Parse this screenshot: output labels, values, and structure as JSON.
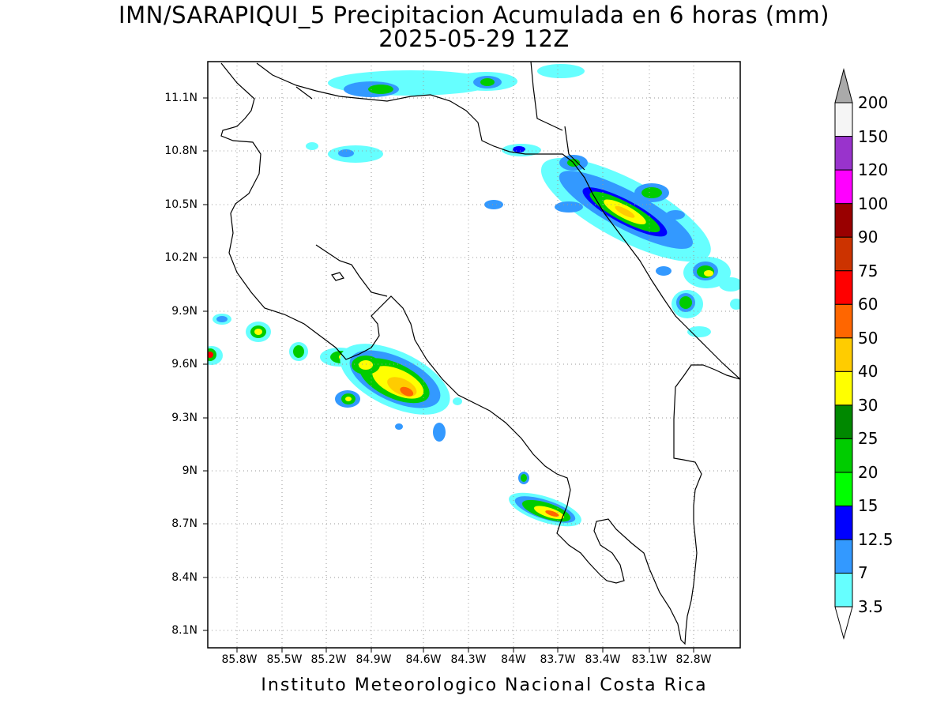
{
  "title": {
    "line1": "IMN/SARAPIQUI_5 Precipitacion Acumulada en 6 horas (mm)",
    "line2": "2025-05-29 12Z"
  },
  "footer": "Instituto Meteorologico Nacional Costa Rica",
  "axes": {
    "lat_labels": [
      "11.1N",
      "10.8N",
      "10.5N",
      "10.2N",
      "9.9N",
      "9.6N",
      "9.3N",
      "9N",
      "8.7N",
      "8.4N",
      "8.1N"
    ],
    "lon_labels": [
      "85.8W",
      "85.5W",
      "85.2W",
      "84.9W",
      "84.6W",
      "84.3W",
      "84W",
      "83.7W",
      "83.4W",
      "83.1W",
      "82.8W"
    ],
    "grid": true
  },
  "colorbar": {
    "labels": [
      "3.5",
      "7",
      "12.5",
      "15",
      "20",
      "25",
      "30",
      "40",
      "50",
      "60",
      "75",
      "90",
      "100",
      "120",
      "150",
      "200"
    ],
    "colors": [
      "#ffffff",
      "#66ffff",
      "#3399ff",
      "#0000ff",
      "#00ff00",
      "#00cc00",
      "#008800",
      "#ffff00",
      "#ffcc00",
      "#ff6600",
      "#ff0000",
      "#cc3300",
      "#990000",
      "#ff00ff",
      "#9933cc",
      "#f5f5f5",
      "#aaaaaa"
    ]
  },
  "colors": {
    "land_border": "#000000",
    "background": "#ffffff"
  }
}
